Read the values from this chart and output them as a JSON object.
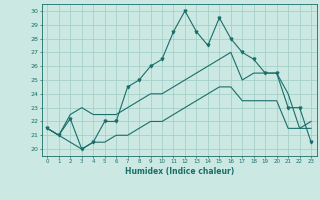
{
  "xlabel": "Humidex (Indice chaleur)",
  "ylabel": "",
  "bg_color": "#cce8e2",
  "grid_color": "#9eccc4",
  "line_color": "#1a6e6a",
  "xlim": [
    -0.5,
    23.5
  ],
  "ylim": [
    19.5,
    30.5
  ],
  "xticks": [
    0,
    1,
    2,
    3,
    4,
    5,
    6,
    7,
    8,
    9,
    10,
    11,
    12,
    13,
    14,
    15,
    16,
    17,
    18,
    19,
    20,
    21,
    22,
    23
  ],
  "yticks": [
    20,
    21,
    22,
    23,
    24,
    25,
    26,
    27,
    28,
    29,
    30
  ],
  "main_y": [
    21.5,
    21.0,
    22.2,
    20.0,
    20.5,
    22.0,
    22.0,
    24.5,
    25.0,
    26.0,
    26.5,
    28.5,
    30.0,
    28.5,
    27.5,
    29.5,
    28.0,
    27.0,
    26.5,
    25.5,
    25.5,
    23.0,
    23.0,
    20.5
  ],
  "upper_y": [
    21.5,
    21.0,
    22.5,
    23.0,
    22.5,
    22.5,
    22.5,
    23.0,
    23.5,
    24.0,
    24.0,
    24.5,
    25.0,
    25.5,
    26.0,
    26.5,
    27.0,
    25.0,
    25.5,
    25.5,
    25.5,
    24.0,
    21.5,
    22.0
  ],
  "lower_y": [
    21.5,
    21.0,
    20.5,
    20.0,
    20.5,
    20.5,
    21.0,
    21.0,
    21.5,
    22.0,
    22.0,
    22.5,
    23.0,
    23.5,
    24.0,
    24.5,
    24.5,
    23.5,
    23.5,
    23.5,
    23.5,
    21.5,
    21.5,
    21.5
  ]
}
